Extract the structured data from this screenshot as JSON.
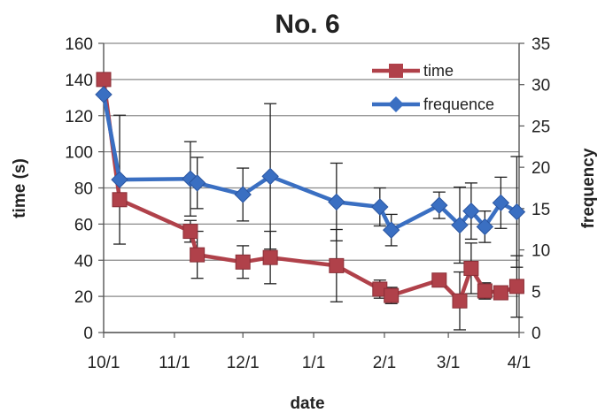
{
  "chart_data": {
    "type": "line",
    "title": "No. 6",
    "xlabel": "date",
    "ylabel": "time (s)",
    "y2label": "frequency",
    "ylim": [
      0,
      160
    ],
    "y2lim": [
      0,
      35
    ],
    "xlim": [
      "10/1",
      "4/1"
    ],
    "x_ticks": [
      "10/1",
      "11/1",
      "12/1",
      "1/1",
      "2/1",
      "3/1",
      "4/1"
    ],
    "y_ticks": [
      "0",
      "20",
      "40",
      "60",
      "80",
      "100",
      "120",
      "140",
      "160"
    ],
    "y2_ticks": [
      "0",
      "5",
      "10",
      "15",
      "20",
      "25",
      "30",
      "35"
    ],
    "grid": true,
    "legend_position": "top-right",
    "series": [
      {
        "name": "time",
        "axis": "left",
        "color": "#b0414a",
        "marker": "square",
        "x": [
          "10/1",
          "10/8",
          "11/8",
          "11/11",
          "12/1",
          "12/13",
          "1/11",
          "1/30",
          "2/4",
          "2/25",
          "3/6",
          "3/11",
          "3/17",
          "3/24",
          "3/31"
        ],
        "values": [
          140,
          73.5,
          56,
          43,
          39,
          41.5,
          37,
          24,
          20.5,
          29,
          17.5,
          35.5,
          23,
          22,
          25.5
        ],
        "errors": [
          null,
          null,
          6,
          13,
          9,
          14.5,
          20,
          5,
          4.5,
          null,
          16,
          14,
          4.5,
          3,
          17
        ]
      },
      {
        "name": "frequence",
        "axis": "right",
        "color": "#3a6fc2",
        "marker": "diamond",
        "x": [
          "10/1",
          "10/8",
          "11/8",
          "11/11",
          "12/1",
          "12/13",
          "1/11",
          "1/30",
          "2/4",
          "2/25",
          "3/6",
          "3/11",
          "3/17",
          "3/24",
          "3/31"
        ],
        "values": [
          28.8,
          18.5,
          18.6,
          18.1,
          16.7,
          18.9,
          15.8,
          15.2,
          12.4,
          15.4,
          13.0,
          14.7,
          12.8,
          15.7,
          14.6
        ],
        "errors": [
          null,
          7.8,
          4.5,
          3.1,
          3.2,
          8.8,
          4.7,
          2.3,
          1.9,
          1.6,
          4.6,
          3.4,
          1.9,
          3.1,
          6.7
        ]
      }
    ]
  }
}
